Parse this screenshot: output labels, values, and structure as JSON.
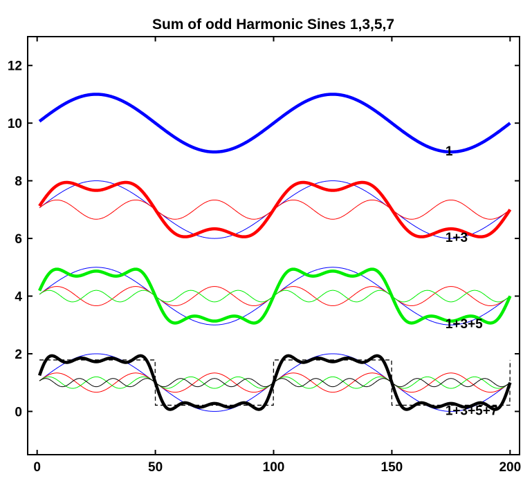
{
  "chart_data": {
    "type": "line",
    "title": "Sum of odd Harmonic Sines 1,3,5,7",
    "xlabel": "",
    "ylabel": "",
    "xlim": [
      -4,
      204
    ],
    "ylim": [
      -1.5,
      13
    ],
    "xticks": [
      0,
      50,
      100,
      150,
      200
    ],
    "yticks": [
      0,
      2,
      4,
      6,
      8,
      10,
      12
    ],
    "grid": false,
    "legend": "none",
    "period": 100,
    "x_range": [
      1,
      200
    ],
    "colors": {
      "fundamental": "#0000ff",
      "third": "#ff0000",
      "fifth": "#00ee00",
      "seventh": "#000000",
      "square": "#000000"
    },
    "groups": [
      {
        "annotation": "1",
        "offset": 10,
        "harmonics": [
          1
        ],
        "sum_color": "#0000ff",
        "components": []
      },
      {
        "annotation": "1+3",
        "offset": 7,
        "harmonics": [
          1,
          3
        ],
        "sum_color": "#ff0000",
        "components": [
          {
            "harmonic": 1,
            "color": "#0000ff",
            "offset": 7
          },
          {
            "harmonic": 3,
            "color": "#ff0000",
            "offset": 7
          }
        ]
      },
      {
        "annotation": "1+3+5",
        "offset": 4,
        "harmonics": [
          1,
          3,
          5
        ],
        "sum_color": "#00ee00",
        "components": [
          {
            "harmonic": 1,
            "color": "#0000ff",
            "offset": 4
          },
          {
            "harmonic": 3,
            "color": "#ff0000",
            "offset": 4
          },
          {
            "harmonic": 5,
            "color": "#00ee00",
            "offset": 4
          }
        ]
      },
      {
        "annotation": "1+3+5+7",
        "offset": 1,
        "harmonics": [
          1,
          3,
          5,
          7
        ],
        "sum_color": "#000000",
        "square_wave": {
          "high": 1.785,
          "low": 0.215,
          "style": "dashed"
        },
        "components": [
          {
            "harmonic": 1,
            "color": "#0000ff",
            "offset": 1
          },
          {
            "harmonic": 3,
            "color": "#ff0000",
            "offset": 1
          },
          {
            "harmonic": 5,
            "color": "#00ee00",
            "offset": 1
          },
          {
            "harmonic": 7,
            "color": "#000000",
            "offset": 1
          }
        ]
      }
    ]
  }
}
